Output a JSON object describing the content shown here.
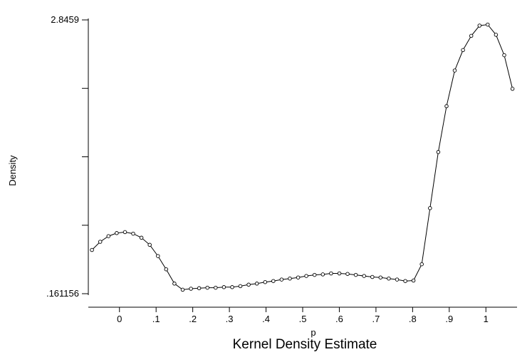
{
  "chart_data": {
    "type": "line",
    "title": "Kernel Density Estimate",
    "xlabel": "p",
    "ylabel": "Density",
    "x_ticks": [
      0,
      0.1,
      0.2,
      0.3,
      0.4,
      0.5,
      0.6,
      0.7,
      0.8,
      0.9,
      1
    ],
    "x_tick_labels": [
      "0",
      ".1",
      ".2",
      ".3",
      ".4",
      ".5",
      ".6",
      ".7",
      ".8",
      ".9",
      "1"
    ],
    "y_ticks": [
      0.161156,
      2.8459
    ],
    "y_tick_labels": [
      ".161156",
      "2.8459"
    ],
    "xlim": [
      -0.085,
      1.085
    ],
    "ylim": [
      0.161156,
      2.8459
    ],
    "grid": false,
    "marker": "hollow-circle",
    "x": [
      -0.075,
      -0.0525,
      -0.03,
      -0.0075,
      0.015,
      0.0375,
      0.06,
      0.0825,
      0.105,
      0.1275,
      0.15,
      0.1725,
      0.195,
      0.2175,
      0.24,
      0.2625,
      0.285,
      0.3075,
      0.33,
      0.3525,
      0.375,
      0.3975,
      0.42,
      0.4425,
      0.465,
      0.4875,
      0.51,
      0.5325,
      0.555,
      0.5775,
      0.6,
      0.6225,
      0.645,
      0.6675,
      0.69,
      0.7125,
      0.735,
      0.7575,
      0.78,
      0.8025,
      0.825,
      0.8475,
      0.87,
      0.8925,
      0.915,
      0.9375,
      0.96,
      0.9825,
      1.005,
      1.0275,
      1.05,
      1.0725
    ],
    "values": [
      0.59,
      0.67,
      0.725,
      0.755,
      0.765,
      0.75,
      0.71,
      0.64,
      0.53,
      0.4,
      0.26,
      0.2,
      0.21,
      0.215,
      0.22,
      0.22,
      0.225,
      0.225,
      0.235,
      0.25,
      0.26,
      0.275,
      0.285,
      0.3,
      0.31,
      0.32,
      0.335,
      0.345,
      0.35,
      0.36,
      0.36,
      0.355,
      0.345,
      0.335,
      0.325,
      0.32,
      0.31,
      0.3,
      0.285,
      0.29,
      0.45,
      1.0,
      1.55,
      2.0,
      2.35,
      2.55,
      2.69,
      2.79,
      2.8,
      2.7,
      2.5,
      2.17
    ]
  }
}
